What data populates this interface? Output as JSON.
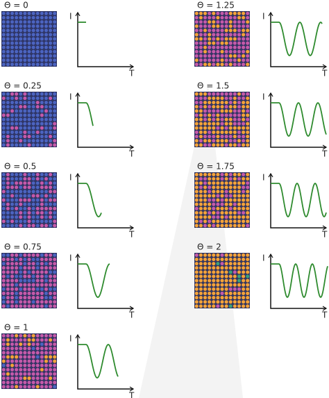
{
  "panels": [
    {
      "label": "Θ = 0",
      "y_axis": "I",
      "x_axis": "T"
    },
    {
      "label": "Θ = 0.25",
      "y_axis": "I",
      "x_axis": "T"
    },
    {
      "label": "Θ = 0.5",
      "y_axis": "I",
      "x_axis": "T"
    },
    {
      "label": "Θ = 0.75",
      "y_axis": "I",
      "x_axis": "T"
    },
    {
      "label": "Θ = 1",
      "y_axis": "I",
      "x_axis": "T"
    },
    {
      "label": "Θ = 1.25",
      "y_axis": "I",
      "x_axis": "T"
    },
    {
      "label": "Θ = 1.5",
      "y_axis": "I",
      "x_axis": "T"
    },
    {
      "label": "Θ = 1.75",
      "y_axis": "I",
      "x_axis": "T"
    },
    {
      "label": "Θ = 2",
      "y_axis": "I",
      "x_axis": "T"
    }
  ]
}
